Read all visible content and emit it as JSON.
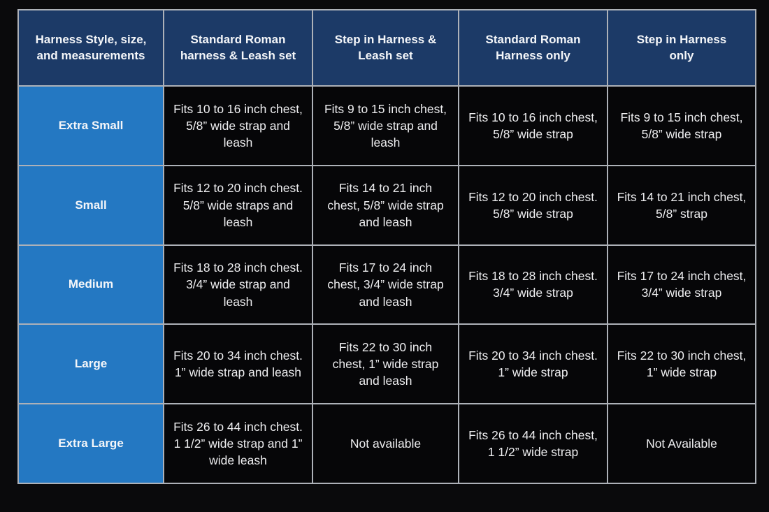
{
  "colors": {
    "page_bg": "#0a0a0c",
    "header_bg": "#1c3a67",
    "size_bg": "#2478c2",
    "cell_bg": "#060608",
    "grid_line": "#adb1b8",
    "header_text": "#f4f6f9",
    "cell_text": "#ededef"
  },
  "chart_data": {
    "type": "table",
    "title": "Harness style, size, and measurements comparison table",
    "columns": [
      "Harness Style, size,\nand measurements",
      "Standard Roman\nharness & Leash set",
      "Step in Harness &\nLeash set",
      "Standard Roman\nHarness only",
      "Step in Harness\nonly"
    ],
    "rows": [
      {
        "size": "Extra Small",
        "cells": [
          "Fits 10 to 16 inch chest, 5/8” wide strap and leash",
          "Fits 9 to 15 inch chest, 5/8” wide strap and leash",
          "Fits 10 to 16 inch chest, 5/8” wide strap",
          "Fits 9 to 15 inch chest, 5/8” wide strap"
        ]
      },
      {
        "size": "Small",
        "cells": [
          "Fits 12 to 20 inch chest. 5/8” wide straps and leash",
          "Fits 14 to 21 inch chest, 5/8” wide strap and leash",
          "Fits 12 to 20 inch chest. 5/8” wide strap",
          "Fits 14 to 21 inch chest, 5/8” strap"
        ]
      },
      {
        "size": "Medium",
        "cells": [
          "Fits 18 to 28 inch chest. 3/4” wide strap and leash",
          "Fits 17 to 24 inch chest, 3/4” wide strap and leash",
          "Fits 18 to 28 inch chest. 3/4” wide strap",
          "Fits 17 to 24 inch chest, 3/4” wide strap"
        ]
      },
      {
        "size": "Large",
        "cells": [
          "Fits 20 to 34 inch chest. 1” wide strap and leash",
          "Fits 22 to 30 inch chest, 1” wide strap and leash",
          "Fits 20 to 34 inch chest. 1” wide strap",
          "Fits 22 to 30 inch chest, 1” wide strap"
        ]
      },
      {
        "size": "Extra Large",
        "cells": [
          "Fits 26 to 44 inch chest. 1 1/2” wide strap and 1” wide leash",
          "Not available",
          "Fits 26 to 44 inch chest, 1 1/2” wide strap",
          "Not Available"
        ]
      }
    ]
  }
}
